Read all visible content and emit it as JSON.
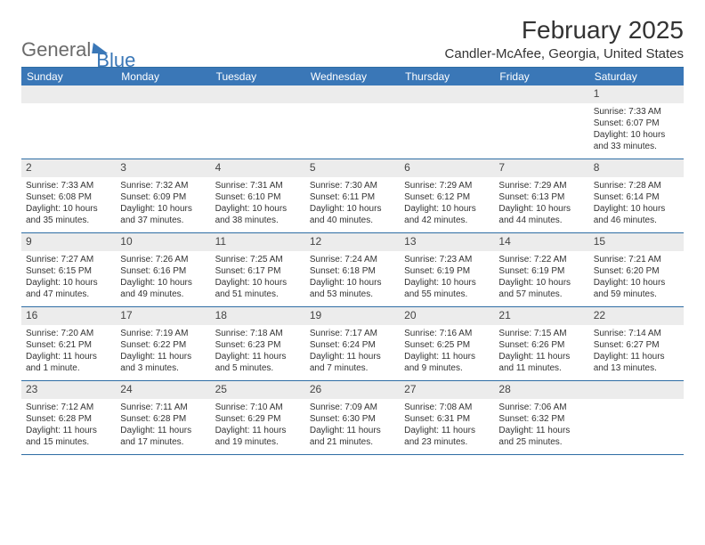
{
  "logo": {
    "general": "General",
    "blue": "Blue"
  },
  "title": "February 2025",
  "location": "Candler-McAfee, Georgia, United States",
  "colors": {
    "header_bg": "#3a77b7",
    "header_text": "#ffffff",
    "border": "#2e6da4",
    "daynum_bg": "#ececec",
    "text": "#333333"
  },
  "daysOfWeek": [
    "Sunday",
    "Monday",
    "Tuesday",
    "Wednesday",
    "Thursday",
    "Friday",
    "Saturday"
  ],
  "weeks": [
    [
      {
        "n": "",
        "empty": true
      },
      {
        "n": "",
        "empty": true
      },
      {
        "n": "",
        "empty": true
      },
      {
        "n": "",
        "empty": true
      },
      {
        "n": "",
        "empty": true
      },
      {
        "n": "",
        "empty": true
      },
      {
        "n": "1",
        "sr": "Sunrise: 7:33 AM",
        "ss": "Sunset: 6:07 PM",
        "dl1": "Daylight: 10 hours",
        "dl2": "and 33 minutes."
      }
    ],
    [
      {
        "n": "2",
        "sr": "Sunrise: 7:33 AM",
        "ss": "Sunset: 6:08 PM",
        "dl1": "Daylight: 10 hours",
        "dl2": "and 35 minutes."
      },
      {
        "n": "3",
        "sr": "Sunrise: 7:32 AM",
        "ss": "Sunset: 6:09 PM",
        "dl1": "Daylight: 10 hours",
        "dl2": "and 37 minutes."
      },
      {
        "n": "4",
        "sr": "Sunrise: 7:31 AM",
        "ss": "Sunset: 6:10 PM",
        "dl1": "Daylight: 10 hours",
        "dl2": "and 38 minutes."
      },
      {
        "n": "5",
        "sr": "Sunrise: 7:30 AM",
        "ss": "Sunset: 6:11 PM",
        "dl1": "Daylight: 10 hours",
        "dl2": "and 40 minutes."
      },
      {
        "n": "6",
        "sr": "Sunrise: 7:29 AM",
        "ss": "Sunset: 6:12 PM",
        "dl1": "Daylight: 10 hours",
        "dl2": "and 42 minutes."
      },
      {
        "n": "7",
        "sr": "Sunrise: 7:29 AM",
        "ss": "Sunset: 6:13 PM",
        "dl1": "Daylight: 10 hours",
        "dl2": "and 44 minutes."
      },
      {
        "n": "8",
        "sr": "Sunrise: 7:28 AM",
        "ss": "Sunset: 6:14 PM",
        "dl1": "Daylight: 10 hours",
        "dl2": "and 46 minutes."
      }
    ],
    [
      {
        "n": "9",
        "sr": "Sunrise: 7:27 AM",
        "ss": "Sunset: 6:15 PM",
        "dl1": "Daylight: 10 hours",
        "dl2": "and 47 minutes."
      },
      {
        "n": "10",
        "sr": "Sunrise: 7:26 AM",
        "ss": "Sunset: 6:16 PM",
        "dl1": "Daylight: 10 hours",
        "dl2": "and 49 minutes."
      },
      {
        "n": "11",
        "sr": "Sunrise: 7:25 AM",
        "ss": "Sunset: 6:17 PM",
        "dl1": "Daylight: 10 hours",
        "dl2": "and 51 minutes."
      },
      {
        "n": "12",
        "sr": "Sunrise: 7:24 AM",
        "ss": "Sunset: 6:18 PM",
        "dl1": "Daylight: 10 hours",
        "dl2": "and 53 minutes."
      },
      {
        "n": "13",
        "sr": "Sunrise: 7:23 AM",
        "ss": "Sunset: 6:19 PM",
        "dl1": "Daylight: 10 hours",
        "dl2": "and 55 minutes."
      },
      {
        "n": "14",
        "sr": "Sunrise: 7:22 AM",
        "ss": "Sunset: 6:19 PM",
        "dl1": "Daylight: 10 hours",
        "dl2": "and 57 minutes."
      },
      {
        "n": "15",
        "sr": "Sunrise: 7:21 AM",
        "ss": "Sunset: 6:20 PM",
        "dl1": "Daylight: 10 hours",
        "dl2": "and 59 minutes."
      }
    ],
    [
      {
        "n": "16",
        "sr": "Sunrise: 7:20 AM",
        "ss": "Sunset: 6:21 PM",
        "dl1": "Daylight: 11 hours",
        "dl2": "and 1 minute."
      },
      {
        "n": "17",
        "sr": "Sunrise: 7:19 AM",
        "ss": "Sunset: 6:22 PM",
        "dl1": "Daylight: 11 hours",
        "dl2": "and 3 minutes."
      },
      {
        "n": "18",
        "sr": "Sunrise: 7:18 AM",
        "ss": "Sunset: 6:23 PM",
        "dl1": "Daylight: 11 hours",
        "dl2": "and 5 minutes."
      },
      {
        "n": "19",
        "sr": "Sunrise: 7:17 AM",
        "ss": "Sunset: 6:24 PM",
        "dl1": "Daylight: 11 hours",
        "dl2": "and 7 minutes."
      },
      {
        "n": "20",
        "sr": "Sunrise: 7:16 AM",
        "ss": "Sunset: 6:25 PM",
        "dl1": "Daylight: 11 hours",
        "dl2": "and 9 minutes."
      },
      {
        "n": "21",
        "sr": "Sunrise: 7:15 AM",
        "ss": "Sunset: 6:26 PM",
        "dl1": "Daylight: 11 hours",
        "dl2": "and 11 minutes."
      },
      {
        "n": "22",
        "sr": "Sunrise: 7:14 AM",
        "ss": "Sunset: 6:27 PM",
        "dl1": "Daylight: 11 hours",
        "dl2": "and 13 minutes."
      }
    ],
    [
      {
        "n": "23",
        "sr": "Sunrise: 7:12 AM",
        "ss": "Sunset: 6:28 PM",
        "dl1": "Daylight: 11 hours",
        "dl2": "and 15 minutes."
      },
      {
        "n": "24",
        "sr": "Sunrise: 7:11 AM",
        "ss": "Sunset: 6:28 PM",
        "dl1": "Daylight: 11 hours",
        "dl2": "and 17 minutes."
      },
      {
        "n": "25",
        "sr": "Sunrise: 7:10 AM",
        "ss": "Sunset: 6:29 PM",
        "dl1": "Daylight: 11 hours",
        "dl2": "and 19 minutes."
      },
      {
        "n": "26",
        "sr": "Sunrise: 7:09 AM",
        "ss": "Sunset: 6:30 PM",
        "dl1": "Daylight: 11 hours",
        "dl2": "and 21 minutes."
      },
      {
        "n": "27",
        "sr": "Sunrise: 7:08 AM",
        "ss": "Sunset: 6:31 PM",
        "dl1": "Daylight: 11 hours",
        "dl2": "and 23 minutes."
      },
      {
        "n": "28",
        "sr": "Sunrise: 7:06 AM",
        "ss": "Sunset: 6:32 PM",
        "dl1": "Daylight: 11 hours",
        "dl2": "and 25 minutes."
      },
      {
        "n": "",
        "empty": true
      }
    ]
  ]
}
